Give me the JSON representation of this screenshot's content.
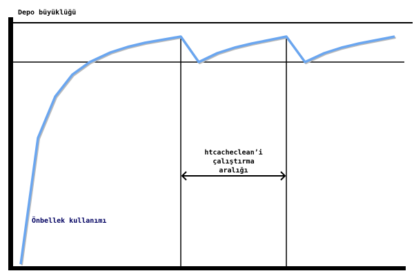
{
  "labels": {
    "y_axis": "Depo büyüklüğü",
    "interval": [
      "htcacheclean’i",
      "çalıştırma",
      "aralığı"
    ],
    "curve": "Önbellek kullanımı"
  },
  "colors": {
    "curve": "#6aa6f0",
    "axes": "#000000",
    "curve_label": "#000060"
  }
}
